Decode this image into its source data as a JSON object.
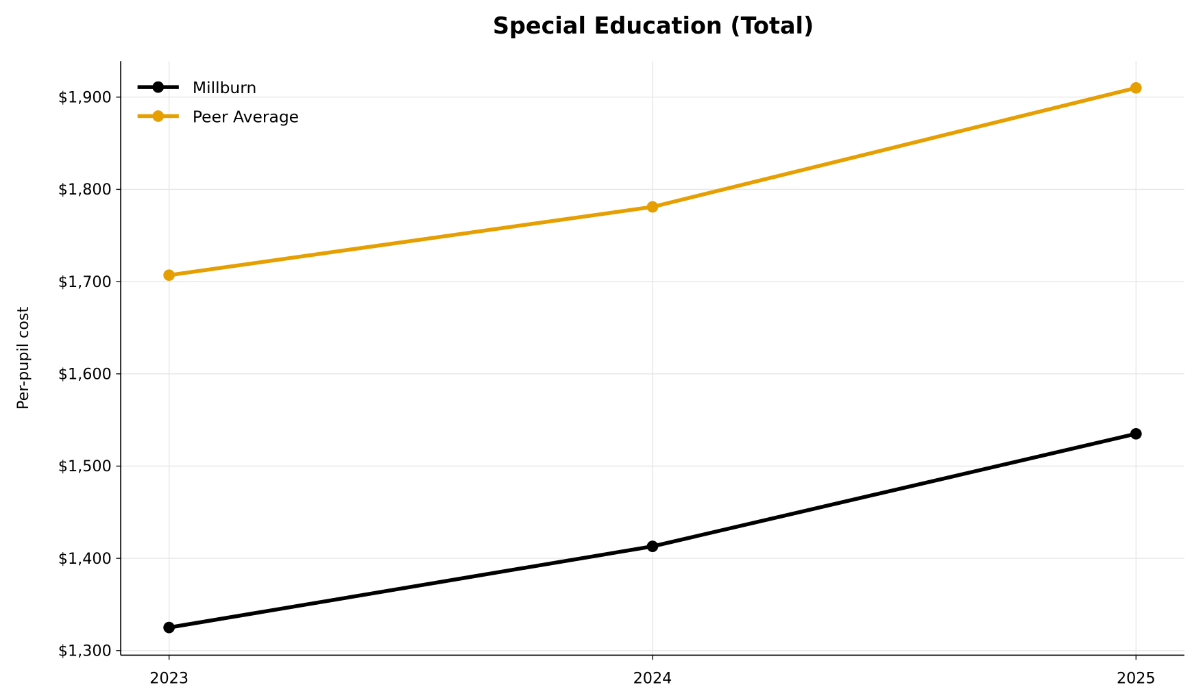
{
  "chart_data": {
    "type": "line",
    "title": "Special Education (Total)",
    "xlabel": "",
    "ylabel": "Per-pupil cost",
    "x": [
      2023,
      2024,
      2025
    ],
    "x_tick_labels": [
      "2023",
      "2024",
      "2025"
    ],
    "xlim": [
      2022.9,
      2025.1
    ],
    "ylim": [
      1295,
      1939
    ],
    "y_ticks": [
      1300,
      1400,
      1500,
      1600,
      1700,
      1800,
      1900
    ],
    "y_tick_labels": [
      "$1,300",
      "$1,400",
      "$1,500",
      "$1,600",
      "$1,700",
      "$1,800",
      "$1,900"
    ],
    "grid": true,
    "legend_placement": "top-left",
    "series": [
      {
        "name": "Millburn",
        "values": [
          1325,
          1413,
          1535
        ],
        "color": "#000000"
      },
      {
        "name": "Peer Average",
        "values": [
          1707,
          1781,
          1910
        ],
        "color": "#e69f00"
      }
    ]
  }
}
